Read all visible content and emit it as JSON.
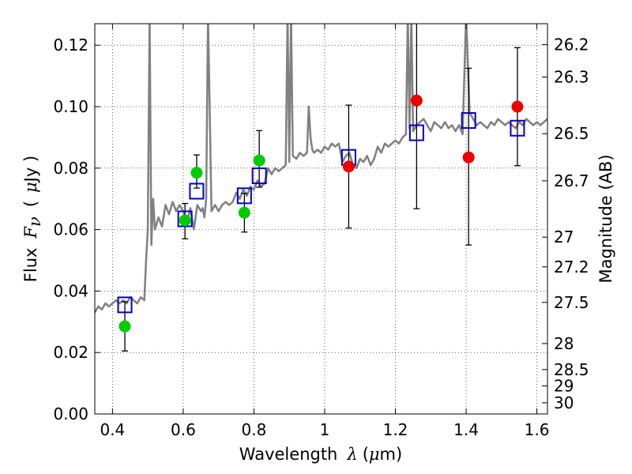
{
  "chart_data": {
    "type": "scatter",
    "title": "",
    "x_axis": {
      "label_prefix": "Wavelength",
      "label_symbol": "λ",
      "label_unit_open": "(",
      "label_unit_symbol": "μ",
      "label_unit_close": "m)",
      "range": [
        0.35,
        1.63
      ],
      "ticks": [
        0.4,
        0.6,
        0.8,
        1.0,
        1.2,
        1.4,
        1.6
      ],
      "tick_labels": [
        "0.4",
        "0.6",
        "0.8",
        "1",
        "1.2",
        "1.4",
        "1.6"
      ]
    },
    "y_axis": {
      "label_prefix": "Flux",
      "label_symbol": "F",
      "label_symbol_sub": "ν",
      "label_unit_open": "(",
      "label_unit_symbol": "μ",
      "label_unit_close": "Jy )",
      "range": [
        0.0,
        0.127
      ],
      "ticks": [
        0.0,
        0.02,
        0.04,
        0.06,
        0.08,
        0.1,
        0.12
      ],
      "tick_labels": [
        "0.00",
        "0.02",
        "0.04",
        "0.06",
        "0.08",
        "0.10",
        "0.12"
      ]
    },
    "y2_axis": {
      "label": "Magnitude (AB)",
      "zero_point_ujy": 23.9,
      "ticks": [
        26.2,
        26.3,
        26.5,
        26.7,
        27,
        27.2,
        27.5,
        28,
        28.5,
        29,
        30
      ],
      "tick_labels": [
        "26.2",
        "26.3",
        "26.5",
        "26.7",
        "27",
        "27.2",
        "27.5",
        "28",
        "28.5",
        "29",
        "30"
      ]
    },
    "grid": true,
    "grid_style": "dotted",
    "legend": "none",
    "series": [
      {
        "kind": "line",
        "color": "#808080",
        "x": [
          0.35,
          0.36,
          0.37,
          0.38,
          0.39,
          0.4,
          0.41,
          0.42,
          0.43,
          0.44,
          0.45,
          0.46,
          0.47,
          0.48,
          0.49,
          0.495,
          0.5,
          0.505,
          0.51,
          0.515,
          0.52,
          0.53,
          0.54,
          0.55,
          0.56,
          0.57,
          0.58,
          0.59,
          0.6,
          0.61,
          0.62,
          0.63,
          0.64,
          0.65,
          0.655,
          0.66,
          0.665,
          0.67,
          0.68,
          0.69,
          0.7,
          0.71,
          0.72,
          0.73,
          0.74,
          0.75,
          0.76,
          0.77,
          0.78,
          0.79,
          0.8,
          0.81,
          0.82,
          0.83,
          0.84,
          0.85,
          0.86,
          0.87,
          0.88,
          0.89,
          0.895,
          0.9,
          0.905,
          0.91,
          0.92,
          0.93,
          0.94,
          0.95,
          0.955,
          0.96,
          0.965,
          0.97,
          0.98,
          0.99,
          1.0,
          1.01,
          1.02,
          1.03,
          1.04,
          1.05,
          1.06,
          1.07,
          1.08,
          1.09,
          1.1,
          1.11,
          1.12,
          1.13,
          1.14,
          1.15,
          1.16,
          1.17,
          1.18,
          1.19,
          1.2,
          1.21,
          1.22,
          1.23,
          1.235,
          1.24,
          1.245,
          1.25,
          1.26,
          1.27,
          1.28,
          1.29,
          1.3,
          1.31,
          1.32,
          1.33,
          1.34,
          1.35,
          1.36,
          1.37,
          1.38,
          1.39,
          1.4,
          1.41,
          1.42,
          1.43,
          1.44,
          1.45,
          1.46,
          1.47,
          1.48,
          1.49,
          1.5,
          1.51,
          1.52,
          1.53,
          1.54,
          1.55,
          1.56,
          1.57,
          1.58,
          1.59,
          1.6,
          1.61,
          1.62,
          1.63
        ],
        "y": [
          0.033,
          0.035,
          0.034,
          0.036,
          0.035,
          0.036,
          0.037,
          0.036,
          0.037,
          0.036,
          0.038,
          0.037,
          0.036,
          0.038,
          0.037,
          0.05,
          0.06,
          0.13,
          0.055,
          0.07,
          0.06,
          0.064,
          0.061,
          0.068,
          0.065,
          0.069,
          0.066,
          0.068,
          0.066,
          0.062,
          0.067,
          0.06,
          0.068,
          0.066,
          0.067,
          0.064,
          0.07,
          0.13,
          0.066,
          0.068,
          0.066,
          0.068,
          0.069,
          0.068,
          0.069,
          0.072,
          0.07,
          0.073,
          0.071,
          0.074,
          0.073,
          0.076,
          0.074,
          0.075,
          0.08,
          0.078,
          0.08,
          0.079,
          0.08,
          0.081,
          0.13,
          0.082,
          0.13,
          0.084,
          0.083,
          0.085,
          0.084,
          0.085,
          0.1,
          0.09,
          0.086,
          0.085,
          0.086,
          0.085,
          0.087,
          0.086,
          0.088,
          0.087,
          0.088,
          0.082,
          0.084,
          0.085,
          0.081,
          0.08,
          0.083,
          0.082,
          0.084,
          0.081,
          0.083,
          0.087,
          0.085,
          0.088,
          0.087,
          0.088,
          0.089,
          0.088,
          0.09,
          0.091,
          0.13,
          0.093,
          0.13,
          0.092,
          0.094,
          0.095,
          0.096,
          0.094,
          0.092,
          0.095,
          0.094,
          0.093,
          0.095,
          0.093,
          0.094,
          0.092,
          0.094,
          0.091,
          0.13,
          0.098,
          0.096,
          0.094,
          0.095,
          0.094,
          0.093,
          0.095,
          0.094,
          0.096,
          0.095,
          0.094,
          0.095,
          0.094,
          0.093,
          0.095,
          0.094,
          0.096,
          0.095,
          0.094,
          0.095,
          0.094,
          0.095,
          0.096
        ]
      },
      {
        "kind": "markers",
        "marker": "open-square",
        "color": "#0000cc",
        "x": [
          0.435,
          0.605,
          0.638,
          0.773,
          0.815,
          1.068,
          1.26,
          1.407,
          1.545
        ],
        "y": [
          0.0355,
          0.0635,
          0.0725,
          0.071,
          0.0775,
          0.0835,
          0.0915,
          0.0955,
          0.093
        ]
      },
      {
        "kind": "markers",
        "marker": "filled-circle",
        "color": "#00cc00",
        "x": [
          0.435,
          0.605,
          0.638,
          0.773,
          0.815
        ],
        "y": [
          0.0285,
          0.063,
          0.0785,
          0.0655,
          0.0825
        ]
      },
      {
        "kind": "markers",
        "marker": "filled-circle",
        "color": "#ee0000",
        "x": [
          1.068,
          1.26,
          1.407,
          1.545
        ],
        "y": [
          0.0805,
          0.102,
          0.0835,
          0.1
        ]
      },
      {
        "kind": "errorbars",
        "color": "#000000",
        "x": [
          0.435,
          0.605,
          0.638,
          0.773,
          0.815,
          1.068,
          1.26,
          1.407,
          1.545
        ],
        "y_low": [
          0.0205,
          0.057,
          0.0735,
          0.0592,
          0.0738,
          0.0605,
          0.0668,
          0.055,
          0.0808
        ],
        "y_high": [
          0.0365,
          0.0685,
          0.0843,
          0.0718,
          0.0922,
          0.1005,
          0.1275,
          0.1125,
          0.1192
        ]
      }
    ]
  }
}
